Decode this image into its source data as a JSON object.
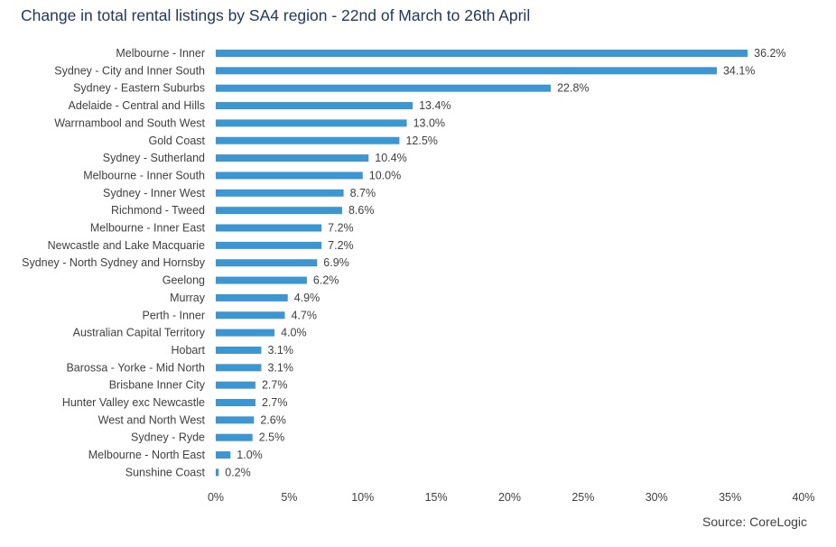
{
  "chart_data": {
    "type": "bar",
    "orientation": "horizontal",
    "title": "Change in total rental listings by SA4 region - 22nd of March to 26th April",
    "source": "Source:  CoreLogic",
    "categories": [
      "Melbourne - Inner",
      "Sydney - City and Inner South",
      "Sydney - Eastern Suburbs",
      "Adelaide - Central and Hills",
      "Warrnambool and South West",
      "Gold Coast",
      "Sydney - Sutherland",
      "Melbourne - Inner South",
      "Sydney - Inner West",
      "Richmond - Tweed",
      "Melbourne - Inner East",
      "Newcastle and Lake Macquarie",
      "Sydney - North Sydney and Hornsby",
      "Geelong",
      "Murray",
      "Perth - Inner",
      "Australian Capital Territory",
      "Hobart",
      "Barossa - Yorke - Mid North",
      "Brisbane Inner City",
      "Hunter Valley exc Newcastle",
      "West and North West",
      "Sydney - Ryde",
      "Melbourne - North East",
      "Sunshine Coast"
    ],
    "values": [
      36.2,
      34.1,
      22.8,
      13.4,
      13.0,
      12.5,
      10.4,
      10.0,
      8.7,
      8.6,
      7.2,
      7.2,
      6.9,
      6.2,
      4.9,
      4.7,
      4.0,
      3.1,
      3.1,
      2.7,
      2.7,
      2.6,
      2.5,
      1.0,
      0.2
    ],
    "value_labels": [
      "36.2%",
      "34.1%",
      "22.8%",
      "13.4%",
      "13.0%",
      "12.5%",
      "10.4%",
      "10.0%",
      "8.7%",
      "8.6%",
      "7.2%",
      "7.2%",
      "6.9%",
      "6.2%",
      "4.9%",
      "4.7%",
      "4.0%",
      "3.1%",
      "3.1%",
      "2.7%",
      "2.7%",
      "2.6%",
      "2.5%",
      "1.0%",
      "0.2%"
    ],
    "xlim": [
      0,
      40
    ],
    "x_ticks": [
      "0%",
      "5%",
      "10%",
      "15%",
      "20%",
      "25%",
      "30%",
      "35%",
      "40%"
    ],
    "bar_color": "#3c96d2",
    "grid": false,
    "legend": "none"
  }
}
